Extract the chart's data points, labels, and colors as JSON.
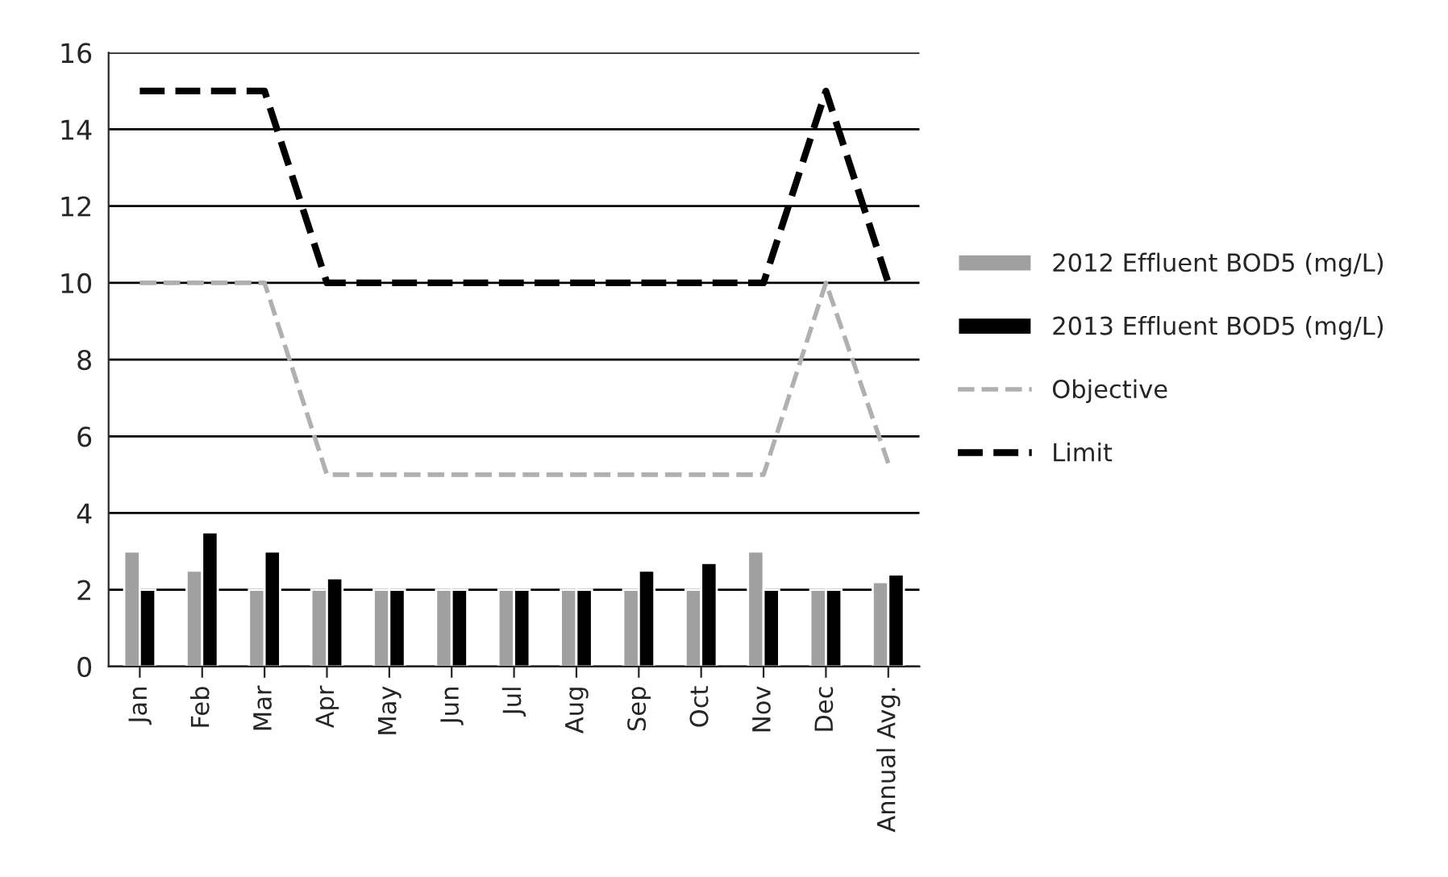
{
  "chart_data": {
    "type": "bar",
    "categories": [
      "Jan",
      "Feb",
      "Mar",
      "Apr",
      "May",
      "Jun",
      "Jul",
      "Aug",
      "Sep",
      "Oct",
      "Nov",
      "Dec",
      "Annual Avg."
    ],
    "series": [
      {
        "name": "2012 Effluent BOD5 (mg/L)",
        "color": "#a0a0a0",
        "values": [
          3,
          2.5,
          2,
          2,
          2,
          2,
          2,
          2,
          2,
          2,
          3,
          2,
          2.2
        ]
      },
      {
        "name": "2013 Effluent BOD5 (mg/L)",
        "color": "#000000",
        "values": [
          2,
          3.5,
          3,
          2.3,
          2,
          2,
          2,
          2,
          2.5,
          2.7,
          2,
          2,
          2.4
        ]
      },
      {
        "name": "Objective",
        "type": "line",
        "color": "#b0b0b0",
        "line_style": "dashed",
        "values": [
          10,
          10,
          10,
          5,
          5,
          5,
          5,
          5,
          5,
          5,
          5,
          10,
          5.3
        ]
      },
      {
        "name": "Limit",
        "type": "line",
        "color": "#000000",
        "line_style": "dashed",
        "values": [
          15,
          15,
          15,
          10,
          10,
          10,
          10,
          10,
          10,
          10,
          10,
          15,
          10
        ]
      }
    ],
    "ylim": [
      0,
      16
    ],
    "yticks": [
      0,
      2,
      4,
      6,
      8,
      10,
      12,
      14,
      16
    ],
    "grid": "y",
    "legend": "right"
  }
}
